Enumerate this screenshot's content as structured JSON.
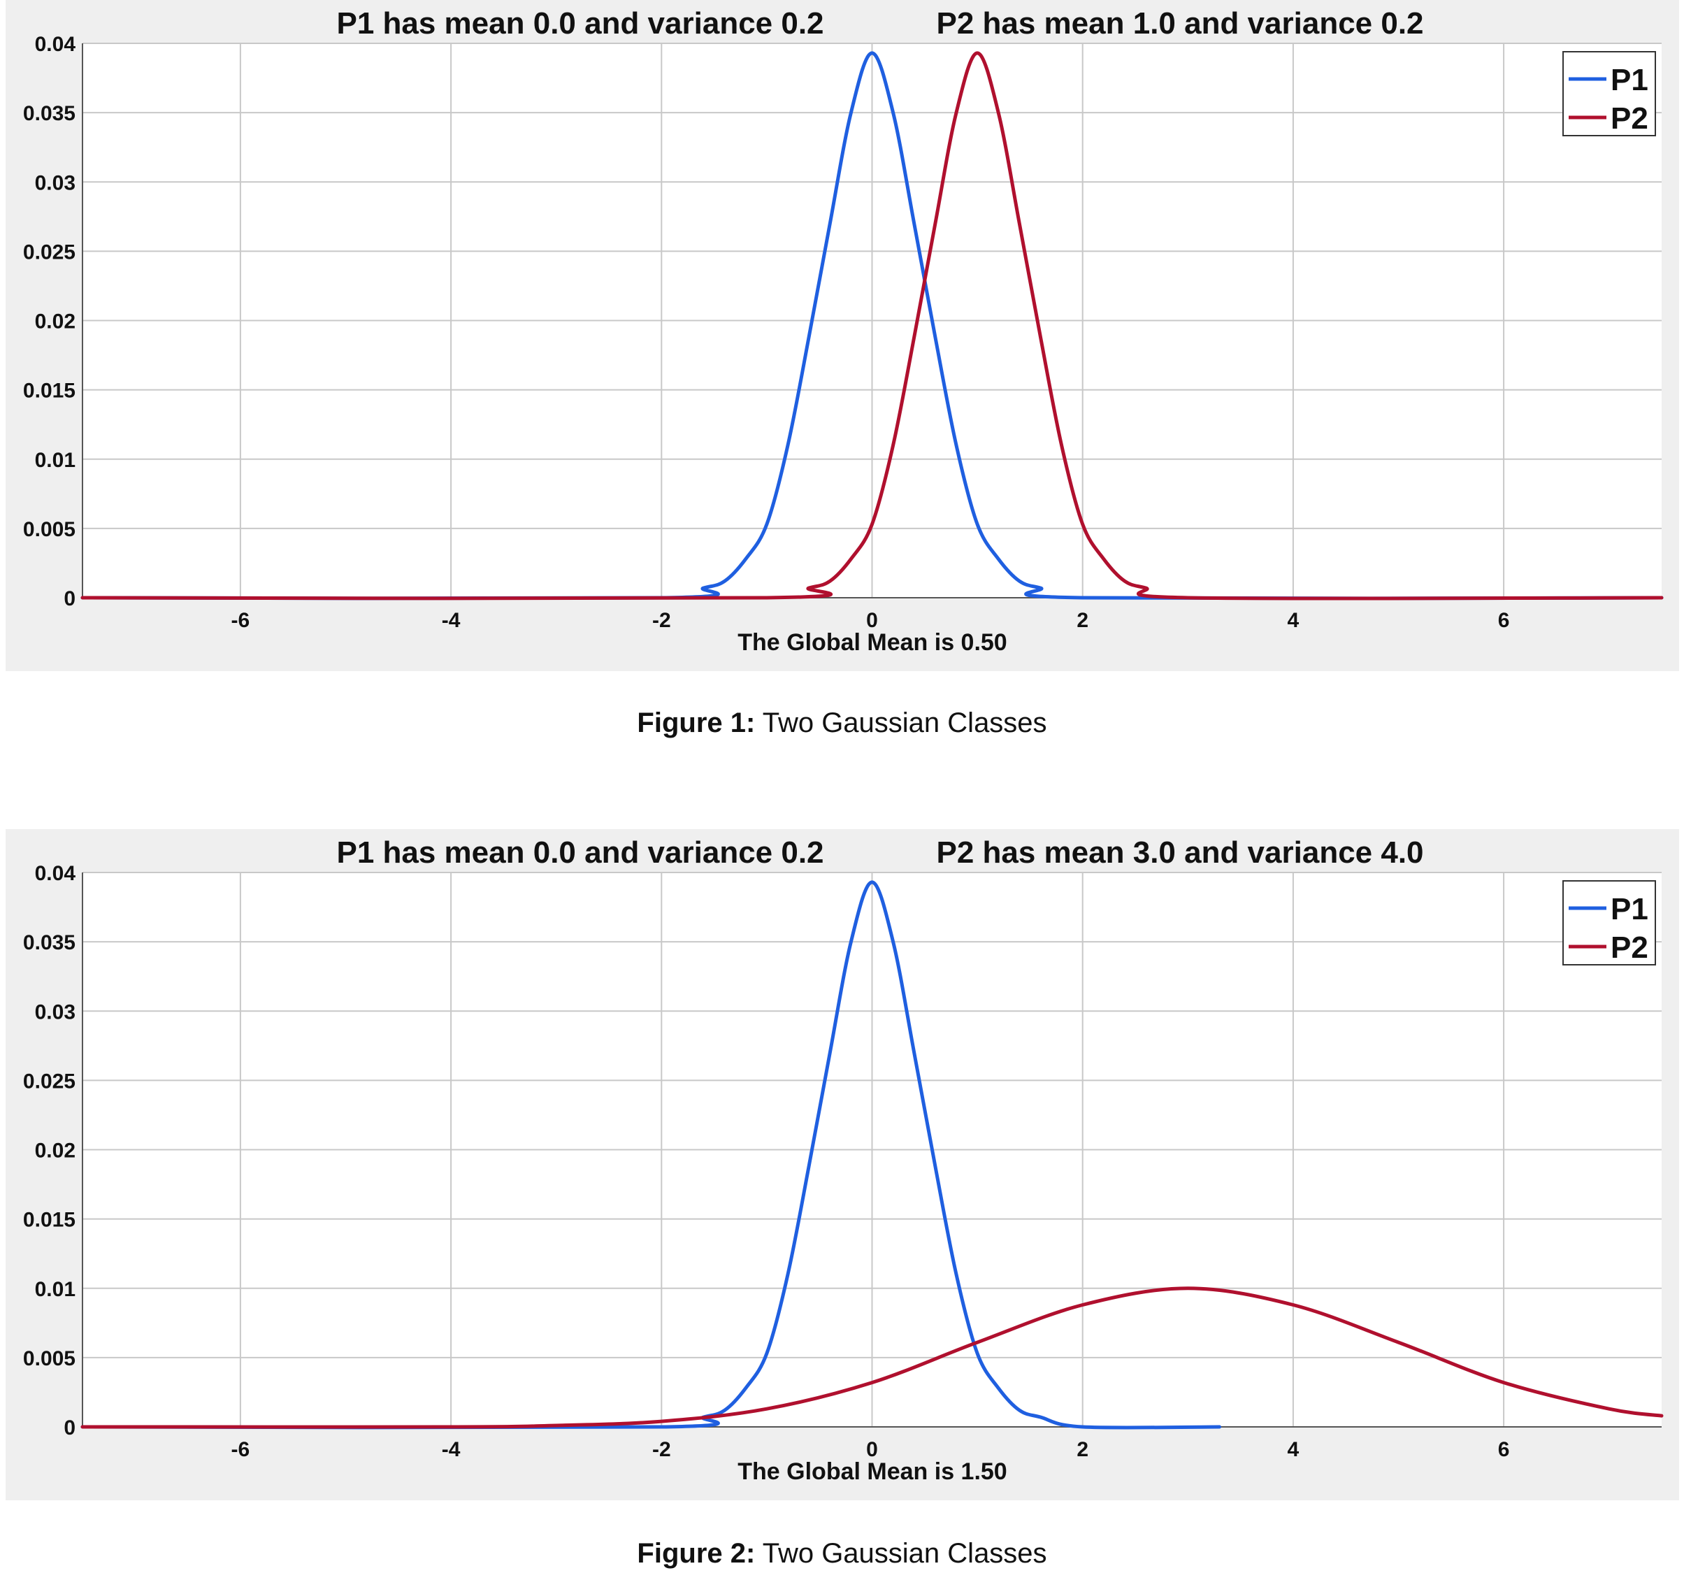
{
  "chart_data": [
    {
      "type": "line",
      "title_left": "P1 has mean  0.0 and variance  0.2",
      "title_right": "P2 has mean  1.0 and variance  0.2",
      "xlabel": "The Global Mean is  0.50",
      "ylabel": "",
      "xlim": [
        -7.5,
        7.5
      ],
      "ylim": [
        0,
        0.04
      ],
      "xticks": [
        -6,
        -4,
        -2,
        0,
        2,
        4,
        6
      ],
      "xtick_labels": [
        "-6",
        "-4",
        "-2",
        "0",
        "2",
        "4",
        "6"
      ],
      "yticks": [
        0,
        0.005,
        0.01,
        0.015,
        0.02,
        0.025,
        0.03,
        0.035,
        0.04
      ],
      "ytick_labels": [
        "0",
        "0.005",
        "0.01",
        "0.015",
        "0.02",
        "0.025",
        "0.03",
        "0.035",
        "0.04"
      ],
      "grid": true,
      "legend_position": "top-right",
      "series": [
        {
          "name": "P1",
          "color": "#1f5fe0",
          "x": [
            -7.5,
            -2.0,
            -1.6,
            -1.4,
            -1.2,
            -1.0,
            -0.8,
            -0.6,
            -0.4,
            -0.2,
            0.0,
            0.2,
            0.4,
            0.6,
            0.8,
            1.0,
            1.2,
            1.4,
            1.6,
            2.0,
            7.5
          ],
          "y": [
            0,
            0,
            0.0007,
            0.0012,
            0.0028,
            0.0053,
            0.011,
            0.0188,
            0.027,
            0.035,
            0.0393,
            0.035,
            0.027,
            0.0188,
            0.011,
            0.0053,
            0.0028,
            0.0012,
            0.0007,
            0,
            0
          ]
        },
        {
          "name": "P2",
          "color": "#b0102e",
          "x": [
            -7.5,
            -1.0,
            -0.6,
            -0.4,
            -0.2,
            0.0,
            0.2,
            0.4,
            0.6,
            0.8,
            1.0,
            1.2,
            1.4,
            1.6,
            1.8,
            2.0,
            2.2,
            2.4,
            2.6,
            3.0,
            7.5
          ],
          "y": [
            0,
            0,
            0.0007,
            0.0012,
            0.0028,
            0.0053,
            0.011,
            0.0188,
            0.027,
            0.035,
            0.0393,
            0.035,
            0.027,
            0.0188,
            0.011,
            0.0053,
            0.0028,
            0.0012,
            0.0007,
            0,
            0
          ]
        }
      ]
    },
    {
      "type": "line",
      "title_left": "P1 has mean  0.0 and variance  0.2",
      "title_right": "P2 has mean  3.0 and variance  4.0",
      "xlabel": "The Global Mean is  1.50",
      "ylabel": "",
      "xlim": [
        -7.5,
        7.5
      ],
      "ylim": [
        0,
        0.04
      ],
      "xticks": [
        -6,
        -4,
        -2,
        0,
        2,
        4,
        6
      ],
      "xtick_labels": [
        "-6",
        "-4",
        "-2",
        "0",
        "2",
        "4",
        "6"
      ],
      "yticks": [
        0,
        0.005,
        0.01,
        0.015,
        0.02,
        0.025,
        0.03,
        0.035,
        0.04
      ],
      "ytick_labels": [
        "0",
        "0.005",
        "0.01",
        "0.015",
        "0.02",
        "0.025",
        "0.03",
        "0.035",
        "0.04"
      ],
      "grid": true,
      "legend_position": "top-right",
      "series": [
        {
          "name": "P1",
          "color": "#1f5fe0",
          "x": [
            -7.5,
            -2.0,
            -1.6,
            -1.4,
            -1.2,
            -1.0,
            -0.8,
            -0.6,
            -0.4,
            -0.2,
            0.0,
            0.2,
            0.4,
            0.6,
            0.8,
            1.0,
            1.2,
            1.4,
            1.6,
            2.0,
            3.3
          ],
          "y": [
            0,
            0,
            0.0007,
            0.0012,
            0.0028,
            0.0053,
            0.011,
            0.0188,
            0.027,
            0.035,
            0.0393,
            0.035,
            0.027,
            0.0188,
            0.011,
            0.0053,
            0.0028,
            0.0012,
            0.0007,
            0,
            0
          ]
        },
        {
          "name": "P2",
          "color": "#b0102e",
          "x": [
            -7.5,
            -4.0,
            -3.0,
            -2.0,
            -1.0,
            0.0,
            1.0,
            2.0,
            3.0,
            4.0,
            5.0,
            6.0,
            7.0,
            7.5
          ],
          "y": [
            0,
            0.0,
            0.0001,
            0.0004,
            0.0013,
            0.0032,
            0.0061,
            0.0088,
            0.01,
            0.0088,
            0.0061,
            0.0032,
            0.0013,
            0.0008
          ]
        }
      ]
    }
  ],
  "captions": [
    {
      "label": "Figure 1:",
      "text": " Two Gaussian Classes"
    },
    {
      "label": "Figure 2:",
      "text": " Two Gaussian Classes"
    }
  ]
}
